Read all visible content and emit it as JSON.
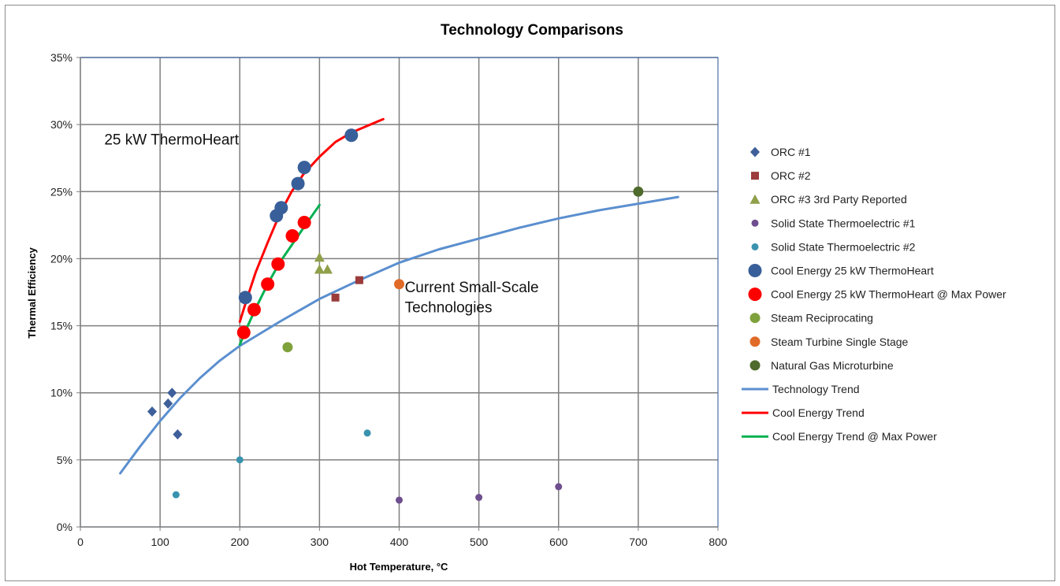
{
  "chart_data": {
    "type": "scatter",
    "title": "Technology Comparisons",
    "xlabel": "Hot Temperature, °C",
    "ylabel": "Thermal Efficiency",
    "xlim": [
      0,
      800
    ],
    "ylim": [
      0,
      0.35
    ],
    "xticks": [
      0,
      100,
      200,
      300,
      400,
      500,
      600,
      700,
      800
    ],
    "yticks": [
      0,
      0.05,
      0.1,
      0.15,
      0.2,
      0.25,
      0.3,
      0.35
    ],
    "xtick_labels": [
      "0",
      "100",
      "200",
      "300",
      "400",
      "500",
      "600",
      "700",
      "800"
    ],
    "ytick_labels": [
      "0%",
      "5%",
      "10%",
      "15%",
      "20%",
      "25%",
      "30%",
      "35%"
    ],
    "grid": true,
    "legend_position": "right",
    "annotations": [
      {
        "text": "25 kW ThermoHeart",
        "x": 30,
        "y": 0.285
      },
      {
        "text": "Current Small-Scale",
        "x": 407,
        "y": 0.175
      },
      {
        "text": "Technologies",
        "x": 407,
        "y": 0.16
      }
    ],
    "series": [
      {
        "name": "ORC #1",
        "kind": "marker",
        "marker": "diamond",
        "color": "#3F5F9A",
        "points": [
          [
            90,
            0.086
          ],
          [
            110,
            0.092
          ],
          [
            115,
            0.1
          ],
          [
            122,
            0.069
          ]
        ]
      },
      {
        "name": "ORC #2",
        "kind": "marker",
        "marker": "square",
        "color": "#9B3B3B",
        "points": [
          [
            320,
            0.171
          ],
          [
            350,
            0.184
          ]
        ]
      },
      {
        "name": "ORC #3 3rd Party Reported",
        "kind": "marker",
        "marker": "triangle",
        "color": "#8FA04B",
        "points": [
          [
            300,
            0.201
          ],
          [
            300,
            0.192
          ],
          [
            310,
            0.192
          ]
        ]
      },
      {
        "name": "Solid State Thermoelectric #1",
        "kind": "marker",
        "marker": "small-circle",
        "color": "#6E4E8E",
        "points": [
          [
            400,
            0.02
          ],
          [
            500,
            0.022
          ],
          [
            600,
            0.03
          ]
        ]
      },
      {
        "name": "Solid State Thermoelectric #2",
        "kind": "marker",
        "marker": "small-circle",
        "color": "#3A93AE",
        "points": [
          [
            120,
            0.024
          ],
          [
            200,
            0.05
          ],
          [
            360,
            0.07
          ]
        ]
      },
      {
        "name": "Cool Energy 25 kW ThermoHeart",
        "kind": "marker",
        "marker": "big-circle",
        "color": "#385F99",
        "points": [
          [
            207,
            0.171
          ],
          [
            246,
            0.232
          ],
          [
            252,
            0.238
          ],
          [
            273,
            0.256
          ],
          [
            281,
            0.268
          ],
          [
            340,
            0.292
          ]
        ]
      },
      {
        "name": "Cool Energy 25 kW ThermoHeart @ Max Power",
        "kind": "marker",
        "marker": "big-circle",
        "color": "#FF0000",
        "points": [
          [
            205,
            0.145
          ],
          [
            218,
            0.162
          ],
          [
            235,
            0.181
          ],
          [
            248,
            0.196
          ],
          [
            266,
            0.217
          ],
          [
            281,
            0.227
          ]
        ]
      },
      {
        "name": "Steam Reciprocating",
        "kind": "marker",
        "marker": "circle",
        "color": "#7FA13C",
        "points": [
          [
            260,
            0.134
          ]
        ]
      },
      {
        "name": "Steam Turbine Single Stage",
        "kind": "marker",
        "marker": "circle",
        "color": "#E06A27",
        "points": [
          [
            400,
            0.181
          ]
        ]
      },
      {
        "name": "Natural Gas Microturbine",
        "kind": "marker",
        "marker": "circle",
        "color": "#4E6A2C",
        "points": [
          [
            700,
            0.25
          ]
        ]
      },
      {
        "name": "Technology Trend",
        "kind": "line",
        "color": "#5B8FCF",
        "points": [
          [
            50,
            0.04
          ],
          [
            75,
            0.06
          ],
          [
            100,
            0.079
          ],
          [
            125,
            0.096
          ],
          [
            150,
            0.111
          ],
          [
            175,
            0.124
          ],
          [
            200,
            0.135
          ],
          [
            250,
            0.153
          ],
          [
            300,
            0.17
          ],
          [
            350,
            0.184
          ],
          [
            400,
            0.197
          ],
          [
            450,
            0.207
          ],
          [
            500,
            0.215
          ],
          [
            550,
            0.223
          ],
          [
            600,
            0.23
          ],
          [
            650,
            0.236
          ],
          [
            700,
            0.241
          ],
          [
            750,
            0.246
          ]
        ]
      },
      {
        "name": "Cool Energy Trend",
        "kind": "line",
        "color": "#FF0000",
        "points": [
          [
            200,
            0.153
          ],
          [
            210,
            0.172
          ],
          [
            220,
            0.19
          ],
          [
            235,
            0.212
          ],
          [
            250,
            0.233
          ],
          [
            265,
            0.25
          ],
          [
            280,
            0.263
          ],
          [
            300,
            0.276
          ],
          [
            320,
            0.287
          ],
          [
            340,
            0.294
          ],
          [
            360,
            0.299
          ],
          [
            380,
            0.304
          ]
        ]
      },
      {
        "name": "Cool Energy Trend @ Max Power",
        "kind": "line",
        "color": "#00B050",
        "points": [
          [
            200,
            0.136
          ],
          [
            210,
            0.15
          ],
          [
            220,
            0.163
          ],
          [
            235,
            0.181
          ],
          [
            250,
            0.197
          ],
          [
            265,
            0.21
          ],
          [
            280,
            0.223
          ],
          [
            300,
            0.24
          ]
        ]
      }
    ]
  }
}
